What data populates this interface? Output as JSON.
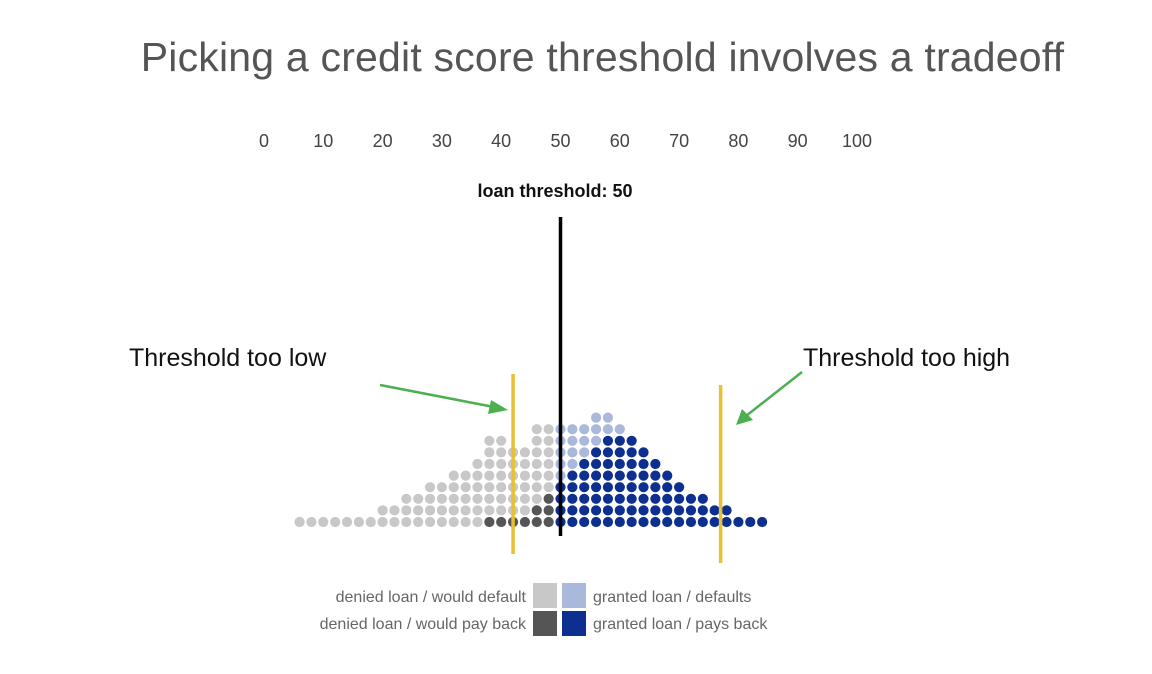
{
  "title": "Picking a credit score threshold involves a tradeoff",
  "scale": {
    "min": 0,
    "max": 100,
    "ticks": [
      "0",
      "10",
      "20",
      "30",
      "40",
      "50",
      "60",
      "70",
      "80",
      "90",
      "100"
    ]
  },
  "threshold": {
    "label": "loan threshold: 50",
    "value": 50
  },
  "annotations": {
    "too_low": {
      "label": "Threshold too low",
      "marker_score": 42
    },
    "too_high": {
      "label": "Threshold too high",
      "marker_score": 77
    }
  },
  "legend": {
    "denied_default": {
      "label": "denied loan / would default",
      "color": "#c8c8c8"
    },
    "granted_default": {
      "label": "granted loan / defaults",
      "color": "#aab8dc"
    },
    "denied_payback": {
      "label": "denied loan / would pay back",
      "color": "#555555"
    },
    "granted_payback": {
      "label": "granted loan / pays back",
      "color": "#0d2f8f"
    }
  },
  "colors": {
    "threshold_line": "#000000",
    "marker_line": "#e8c030",
    "arrow": "#4caf50"
  },
  "chart_data": {
    "type": "dot-histogram",
    "columns": [
      {
        "score": 6,
        "default": 1,
        "payback": 0
      },
      {
        "score": 8,
        "default": 1,
        "payback": 0
      },
      {
        "score": 10,
        "default": 1,
        "payback": 0
      },
      {
        "score": 12,
        "default": 1,
        "payback": 0
      },
      {
        "score": 14,
        "default": 1,
        "payback": 0
      },
      {
        "score": 16,
        "default": 1,
        "payback": 0
      },
      {
        "score": 18,
        "default": 1,
        "payback": 0
      },
      {
        "score": 20,
        "default": 2,
        "payback": 0
      },
      {
        "score": 22,
        "default": 2,
        "payback": 0
      },
      {
        "score": 24,
        "default": 3,
        "payback": 0
      },
      {
        "score": 26,
        "default": 3,
        "payback": 0
      },
      {
        "score": 28,
        "default": 4,
        "payback": 0
      },
      {
        "score": 30,
        "default": 4,
        "payback": 0
      },
      {
        "score": 32,
        "default": 5,
        "payback": 0
      },
      {
        "score": 34,
        "default": 5,
        "payback": 0
      },
      {
        "score": 36,
        "default": 6,
        "payback": 0
      },
      {
        "score": 38,
        "default": 7,
        "payback": 1
      },
      {
        "score": 40,
        "default": 7,
        "payback": 1
      },
      {
        "score": 42,
        "default": 6,
        "payback": 1
      },
      {
        "score": 44,
        "default": 6,
        "payback": 1
      },
      {
        "score": 46,
        "default": 7,
        "payback": 2
      },
      {
        "score": 48,
        "default": 6,
        "payback": 3
      },
      {
        "score": 50,
        "default": 5,
        "payback": 4
      },
      {
        "score": 52,
        "default": 4,
        "payback": 5
      },
      {
        "score": 54,
        "default": 3,
        "payback": 6
      },
      {
        "score": 56,
        "default": 3,
        "payback": 7
      },
      {
        "score": 58,
        "default": 2,
        "payback": 8
      },
      {
        "score": 60,
        "default": 1,
        "payback": 8
      },
      {
        "score": 62,
        "default": 0,
        "payback": 8
      },
      {
        "score": 64,
        "default": 0,
        "payback": 7
      },
      {
        "score": 66,
        "default": 0,
        "payback": 6
      },
      {
        "score": 68,
        "default": 0,
        "payback": 5
      },
      {
        "score": 70,
        "default": 0,
        "payback": 4
      },
      {
        "score": 72,
        "default": 0,
        "payback": 3
      },
      {
        "score": 74,
        "default": 0,
        "payback": 3
      },
      {
        "score": 76,
        "default": 0,
        "payback": 2
      },
      {
        "score": 78,
        "default": 0,
        "payback": 2
      },
      {
        "score": 80,
        "default": 0,
        "payback": 1
      },
      {
        "score": 82,
        "default": 0,
        "payback": 1
      },
      {
        "score": 84,
        "default": 0,
        "payback": 1
      }
    ]
  }
}
